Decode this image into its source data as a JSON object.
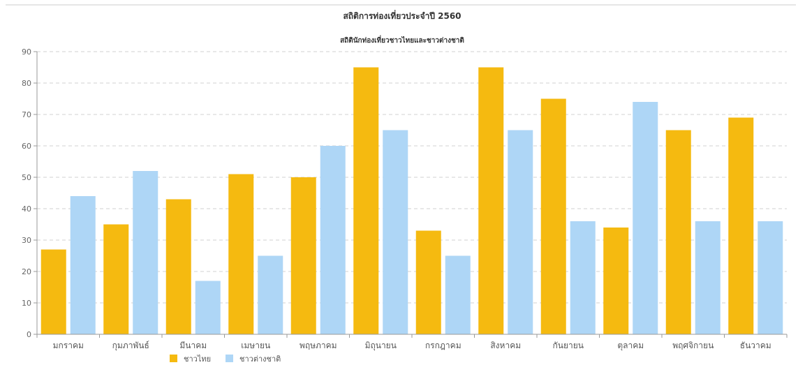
{
  "chart_data": {
    "type": "bar",
    "title": "สถิติการท่องเที่ยวประจำปี 2560",
    "subtitle": "สถิตินักท่องเที่ยวชาวไทยและชาวต่างชาติ",
    "xlabel": "",
    "ylabel": "",
    "ylim": [
      0,
      90
    ],
    "yticks": [
      0,
      10,
      20,
      30,
      40,
      50,
      60,
      70,
      80,
      90
    ],
    "grid": true,
    "legend": "bottom-left",
    "categories": [
      "มกราคม",
      "กุมภาพันธ์",
      "มีนาคม",
      "เมษายน",
      "พฤษภาคม",
      "มิถุนายน",
      "กรกฎาคม",
      "สิงหาคม",
      "กันยายน",
      "ตุลาคม",
      "พฤศจิกายน",
      "ธันวาคม"
    ],
    "series": [
      {
        "name": "ชาวไทย",
        "color": "#F5BA10",
        "values": [
          27,
          35,
          43,
          51,
          50,
          85,
          33,
          85,
          75,
          34,
          65,
          69
        ]
      },
      {
        "name": "ชาวต่างชาติ",
        "color": "#AED6F6",
        "values": [
          44,
          52,
          17,
          25,
          60,
          65,
          25,
          65,
          36,
          74,
          36,
          36
        ]
      }
    ]
  }
}
